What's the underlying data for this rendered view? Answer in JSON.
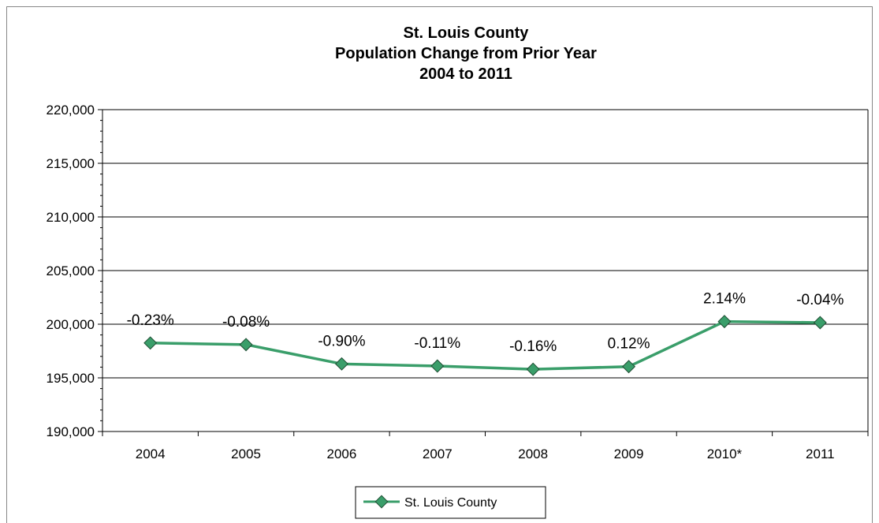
{
  "chart_data": {
    "type": "line",
    "title_lines": [
      "St. Louis County",
      "Population Change from Prior Year",
      "2004 to 2011"
    ],
    "categories": [
      "2004",
      "2005",
      "2006",
      "2007",
      "2008",
      "2009",
      "2010*",
      "2011"
    ],
    "series": [
      {
        "name": "St. Louis County",
        "color": "#3a9e6a",
        "values": [
          198250,
          198100,
          196300,
          196100,
          195800,
          196050,
          200250,
          200150
        ],
        "data_labels": [
          "-0.23%",
          "-0.08%",
          "-0.90%",
          "-0.11%",
          "-0.16%",
          "0.12%",
          "2.14%",
          "-0.04%"
        ]
      }
    ],
    "ylim": [
      190000,
      220000
    ],
    "yticks": [
      190000,
      195000,
      200000,
      205000,
      210000,
      215000,
      220000
    ],
    "ytick_labels": [
      "190,000",
      "195,000",
      "200,000",
      "205,000",
      "210,000",
      "215,000",
      "220,000"
    ],
    "xlabel": "",
    "ylabel": "",
    "grid": true,
    "legend_position": "bottom-center"
  }
}
